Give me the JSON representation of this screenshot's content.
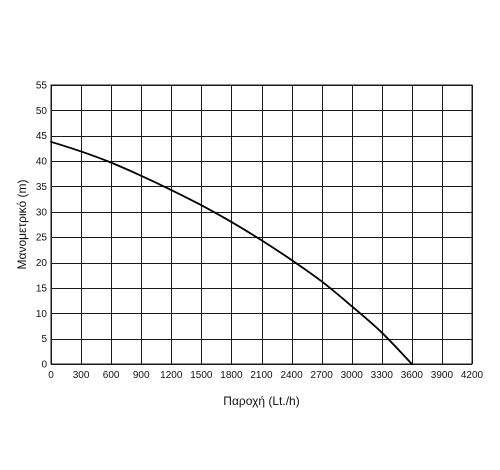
{
  "chart_data": {
    "type": "line",
    "title": "",
    "xlabel": "Παροχή (Lt./h)",
    "ylabel": "Μανομετρικό  (m)",
    "xlim": [
      0,
      4200
    ],
    "ylim": [
      0,
      55
    ],
    "x_ticks": [
      "0",
      "300",
      "600",
      "900",
      "1200",
      "1500",
      "1800",
      "2100",
      "2400",
      "2700",
      "3000",
      "3300",
      "3600",
      "3900",
      "4200"
    ],
    "y_ticks": [
      "0",
      "5",
      "10",
      "15",
      "20",
      "25",
      "30",
      "35",
      "40",
      "45",
      "50",
      "55"
    ],
    "grid": true,
    "legend": "none",
    "series": [
      {
        "x": [
          0,
          300,
          600,
          900,
          1200,
          1500,
          1800,
          2100,
          2400,
          2700,
          3000,
          3300,
          3600
        ],
        "y": [
          43.8,
          41.9,
          39.7,
          37.1,
          34.3,
          31.3,
          28.0,
          24.4,
          20.5,
          16.3,
          11.4,
          6.2,
          0
        ],
        "color": "#000000"
      }
    ]
  }
}
